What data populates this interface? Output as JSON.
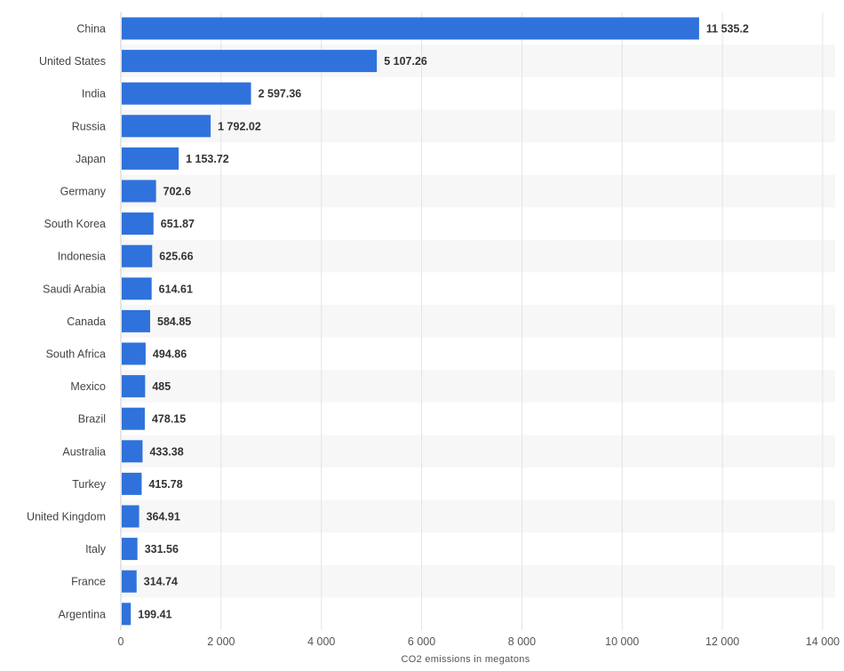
{
  "chart_data": {
    "type": "bar",
    "orientation": "horizontal",
    "categories": [
      "China",
      "United States",
      "India",
      "Russia",
      "Japan",
      "Germany",
      "South Korea",
      "Indonesia",
      "Saudi Arabia",
      "Canada",
      "South Africa",
      "Mexico",
      "Brazil",
      "Australia",
      "Turkey",
      "United Kingdom",
      "Italy",
      "France",
      "Argentina"
    ],
    "values": [
      11535.2,
      5107.26,
      2597.36,
      1792.02,
      1153.72,
      702.6,
      651.87,
      625.66,
      614.61,
      584.85,
      494.86,
      485,
      478.15,
      433.38,
      415.78,
      364.91,
      331.56,
      314.74,
      199.41
    ],
    "value_labels": [
      "11 535.2",
      "5 107.26",
      "2 597.36",
      "1 792.02",
      "1 153.72",
      "702.6",
      "651.87",
      "625.66",
      "614.61",
      "584.85",
      "494.86",
      "485",
      "478.15",
      "433.38",
      "415.78",
      "364.91",
      "331.56",
      "314.74",
      "199.41"
    ],
    "x_ticks": [
      0,
      2000,
      4000,
      6000,
      8000,
      10000,
      12000,
      14000
    ],
    "x_tick_labels": [
      "0",
      "2 000",
      "4 000",
      "6 000",
      "8 000",
      "10 000",
      "12 000",
      "14 000"
    ],
    "xlim": [
      0,
      14000
    ],
    "xlabel": "CO2 emissions in megatons",
    "ylabel": "",
    "title": "",
    "grid": true,
    "bar_color": "#2f72dc",
    "stripe_color": "#f7f7f7",
    "grid_color": "#e4e4e4"
  }
}
